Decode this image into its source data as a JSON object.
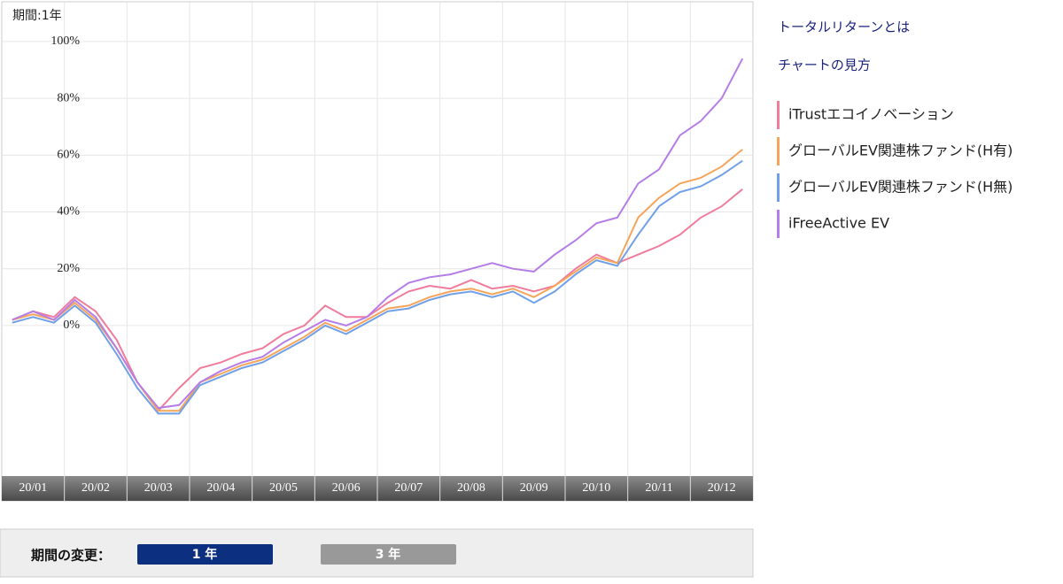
{
  "chart_data": {
    "type": "line",
    "period_label": "期間:1年",
    "categories": [
      "20/01",
      null,
      null,
      "20/02",
      null,
      null,
      "20/03",
      null,
      null,
      "20/04",
      null,
      null,
      "20/05",
      null,
      null,
      "20/06",
      null,
      null,
      "20/07",
      null,
      null,
      "20/08",
      null,
      null,
      "20/09",
      null,
      null,
      "20/10",
      null,
      null,
      "20/11",
      null,
      null,
      "20/12",
      null,
      null
    ],
    "series": [
      {
        "name": "iTrustエコイノベーション",
        "color": "#f07c9c",
        "values": [
          2,
          5,
          3,
          10,
          5,
          -5,
          -20,
          -30,
          -22,
          -15,
          -13,
          -10,
          -8,
          -3,
          0,
          7,
          3,
          3,
          8,
          12,
          14,
          13,
          16,
          13,
          14,
          12,
          14,
          20,
          25,
          22,
          25,
          28,
          32,
          38,
          42,
          48
        ]
      },
      {
        "name": "グローバルEV関連株ファンド(H有)",
        "color": "#f5a55a",
        "values": [
          2,
          4,
          2,
          8,
          2,
          -8,
          -20,
          -30,
          -30,
          -20,
          -17,
          -14,
          -12,
          -8,
          -4,
          1,
          -2,
          2,
          6,
          7,
          10,
          12,
          13,
          11,
          13,
          10,
          14,
          19,
          24,
          22,
          38,
          45,
          50,
          52,
          56,
          62
        ]
      },
      {
        "name": "グローバルEV関連株ファンド(H無)",
        "color": "#6fa0e8",
        "values": [
          1,
          3,
          1,
          7,
          1,
          -10,
          -22,
          -31,
          -31,
          -21,
          -18,
          -15,
          -13,
          -9,
          -5,
          0,
          -3,
          1,
          5,
          6,
          9,
          11,
          12,
          10,
          12,
          8,
          12,
          18,
          23,
          21,
          32,
          42,
          47,
          49,
          53,
          58
        ]
      },
      {
        "name": "iFreeActive EV",
        "color": "#b57de8",
        "values": [
          2,
          5,
          2,
          9,
          3,
          -8,
          -20,
          -29,
          -28,
          -20,
          -16,
          -13,
          -11,
          -6,
          -2,
          2,
          0,
          3,
          10,
          15,
          17,
          18,
          20,
          22,
          20,
          19,
          25,
          30,
          36,
          38,
          50,
          55,
          67,
          72,
          80,
          94
        ]
      }
    ],
    "ylim": [
      -53,
      114
    ],
    "yticks": [
      {
        "value": 0,
        "label": "0%"
      },
      {
        "value": 20,
        "label": "20%"
      },
      {
        "value": 40,
        "label": "40%"
      },
      {
        "value": 60,
        "label": "60%"
      },
      {
        "value": 80,
        "label": "80%"
      },
      {
        "value": 100,
        "label": "100%"
      }
    ],
    "grid": true
  },
  "links": [
    "トータルリターンとは",
    "チャートの見方"
  ],
  "period_selector": {
    "label": "期間の変更：",
    "options": [
      "1 年",
      "3 年"
    ]
  }
}
